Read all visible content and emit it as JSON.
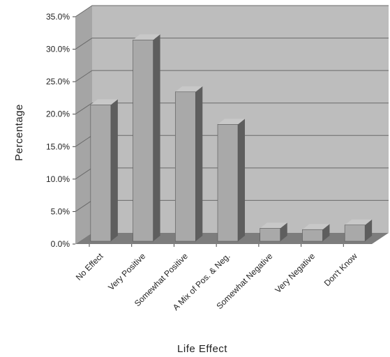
{
  "chart_data": {
    "type": "bar",
    "categories": [
      "No Effect",
      "Very Positive",
      "Somewhat Positive",
      "A Mix of Pos. & Neg.",
      "Somewhat Negative",
      "Very Negative",
      "Don't Know"
    ],
    "values": [
      21.0,
      31.0,
      23.0,
      18.0,
      2.0,
      1.8,
      2.5
    ],
    "xlabel": "Life Effect",
    "ylabel": "Percentage",
    "ylim": [
      0,
      35
    ],
    "yticks": [
      "0.0%",
      "5.0%",
      "10.0%",
      "15.0%",
      "20.0%",
      "25.0%",
      "30.0%",
      "35.0%"
    ],
    "grid": true,
    "style": "3d",
    "colors": {
      "bar_front": "#a9a9a9",
      "bar_top": "#c8c8c8",
      "bar_side": "#5e5e5e",
      "back_wall": "#bdbdbd",
      "side_wall": "#a5a5a5",
      "floor": "#7d7d7d"
    }
  }
}
